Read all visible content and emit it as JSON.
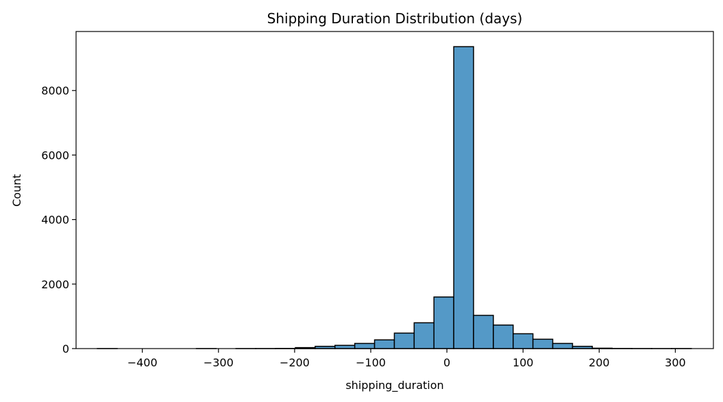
{
  "chart_data": {
    "type": "bar",
    "title": "Shipping Duration Distribution (days)",
    "xlabel": "shipping_duration",
    "ylabel": "Count",
    "xlim": [
      -487,
      350
    ],
    "ylim": [
      0,
      9830
    ],
    "grid": false,
    "bar_color": "#5499c7",
    "edge_color": "#000000",
    "x_ticks": [
      -400,
      -300,
      -200,
      -100,
      0,
      100,
      200,
      300
    ],
    "x_tick_labels": [
      "−400",
      "−300",
      "−200",
      "−100",
      "0",
      "100",
      "200",
      "300"
    ],
    "y_ticks": [
      0,
      2000,
      4000,
      6000,
      8000
    ],
    "y_tick_labels": [
      "0",
      "2000",
      "4000",
      "6000",
      "8000"
    ],
    "bins": [
      {
        "x0": -459.0,
        "x1": -433.0,
        "count": 1
      },
      {
        "x0": -433.0,
        "x1": -407.0,
        "count": 0
      },
      {
        "x0": -407.0,
        "x1": -381.0,
        "count": 0
      },
      {
        "x0": -381.0,
        "x1": -355.0,
        "count": 0
      },
      {
        "x0": -355.0,
        "x1": -329.0,
        "count": 0
      },
      {
        "x0": -329.0,
        "x1": -303.0,
        "count": 1
      },
      {
        "x0": -303.0,
        "x1": -277.0,
        "count": 0
      },
      {
        "x0": -277.0,
        "x1": -251.0,
        "count": 1
      },
      {
        "x0": -251.0,
        "x1": -225.0,
        "count": 2
      },
      {
        "x0": -225.0,
        "x1": -199.0,
        "count": 5
      },
      {
        "x0": -199.0,
        "x1": -173.0,
        "count": 30
      },
      {
        "x0": -173.0,
        "x1": -147.0,
        "count": 70
      },
      {
        "x0": -147.0,
        "x1": -121.0,
        "count": 100
      },
      {
        "x0": -121.0,
        "x1": -95.0,
        "count": 160
      },
      {
        "x0": -95.0,
        "x1": -69.0,
        "count": 270
      },
      {
        "x0": -69.0,
        "x1": -43.0,
        "count": 480
      },
      {
        "x0": -43.0,
        "x1": -17.0,
        "count": 800
      },
      {
        "x0": -17.0,
        "x1": 9.0,
        "count": 1600
      },
      {
        "x0": 9.0,
        "x1": 35.0,
        "count": 9360
      },
      {
        "x0": 35.0,
        "x1": 61.0,
        "count": 1030
      },
      {
        "x0": 61.0,
        "x1": 87.0,
        "count": 730
      },
      {
        "x0": 87.0,
        "x1": 113.0,
        "count": 460
      },
      {
        "x0": 113.0,
        "x1": 139.0,
        "count": 290
      },
      {
        "x0": 139.0,
        "x1": 165.0,
        "count": 160
      },
      {
        "x0": 165.0,
        "x1": 191.0,
        "count": 70
      },
      {
        "x0": 191.0,
        "x1": 217.0,
        "count": 12
      },
      {
        "x0": 217.0,
        "x1": 243.0,
        "count": 4
      },
      {
        "x0": 243.0,
        "x1": 269.0,
        "count": 2
      },
      {
        "x0": 269.0,
        "x1": 295.0,
        "count": 1
      },
      {
        "x0": 295.0,
        "x1": 321.0,
        "count": 2
      }
    ]
  }
}
